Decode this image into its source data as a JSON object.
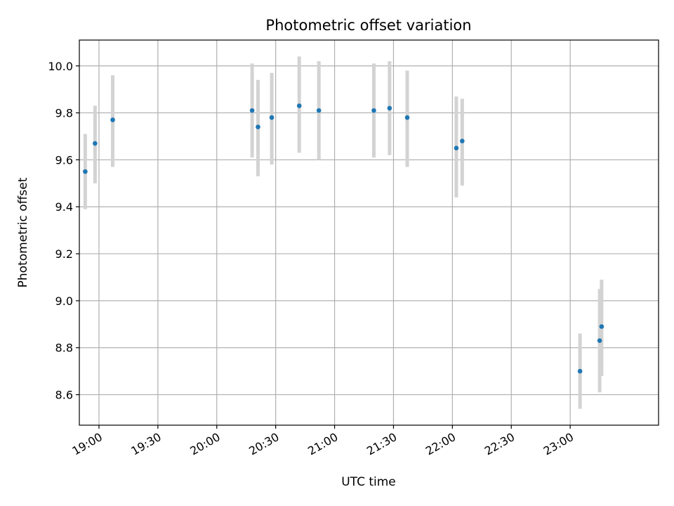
{
  "chart_data": {
    "type": "scatter",
    "title": "Photometric offset variation",
    "xlabel": "UTC time",
    "ylabel": "Photometric offset",
    "x_ticks": [
      "19:00",
      "19:30",
      "20:00",
      "20:30",
      "21:00",
      "21:30",
      "22:00",
      "22:30",
      "23:00"
    ],
    "y_ticks": [
      "8.6",
      "8.8",
      "9.0",
      "9.2",
      "9.4",
      "9.6",
      "9.8",
      "10.0"
    ],
    "xlim": [
      "18:50",
      "23:45"
    ],
    "ylim": [
      8.47,
      10.11
    ],
    "grid": true,
    "x_tick_rotation_deg": 30,
    "series": [
      {
        "points": [
          {
            "x": "18:53",
            "y": 9.55,
            "ylow": 9.39,
            "yhigh": 9.71
          },
          {
            "x": "18:58",
            "y": 9.67,
            "ylow": 9.5,
            "yhigh": 9.83
          },
          {
            "x": "19:07",
            "y": 9.77,
            "ylow": 9.57,
            "yhigh": 9.96
          },
          {
            "x": "20:18",
            "y": 9.81,
            "ylow": 9.61,
            "yhigh": 10.01
          },
          {
            "x": "20:21",
            "y": 9.74,
            "ylow": 9.53,
            "yhigh": 9.94
          },
          {
            "x": "20:28",
            "y": 9.78,
            "ylow": 9.58,
            "yhigh": 9.97
          },
          {
            "x": "20:42",
            "y": 9.83,
            "ylow": 9.63,
            "yhigh": 10.04
          },
          {
            "x": "20:52",
            "y": 9.81,
            "ylow": 9.6,
            "yhigh": 10.02
          },
          {
            "x": "21:20",
            "y": 9.81,
            "ylow": 9.61,
            "yhigh": 10.01
          },
          {
            "x": "21:28",
            "y": 9.82,
            "ylow": 9.62,
            "yhigh": 10.02
          },
          {
            "x": "21:37",
            "y": 9.78,
            "ylow": 9.57,
            "yhigh": 9.98
          },
          {
            "x": "22:02",
            "y": 9.65,
            "ylow": 9.44,
            "yhigh": 9.87
          },
          {
            "x": "22:05",
            "y": 9.68,
            "ylow": 9.49,
            "yhigh": 9.86
          },
          {
            "x": "23:05",
            "y": 8.7,
            "ylow": 8.54,
            "yhigh": 8.86
          },
          {
            "x": "23:15",
            "y": 8.83,
            "ylow": 8.61,
            "yhigh": 9.05
          },
          {
            "x": "23:16",
            "y": 8.89,
            "ylow": 8.68,
            "yhigh": 9.09
          }
        ]
      }
    ],
    "colors": {
      "marker": "#1f77b4",
      "errorbar": "#d3d3d3",
      "grid": "#b0b0b0"
    }
  }
}
